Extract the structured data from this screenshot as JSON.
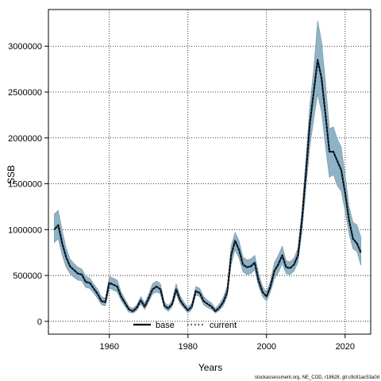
{
  "chart_data": {
    "type": "line",
    "title": "",
    "xlabel": "Years",
    "ylabel": "SSB",
    "xlim": [
      1944.5,
      2026.5
    ],
    "ylim": [
      -140000,
      3400000
    ],
    "x_ticks": [
      1960,
      1980,
      2000,
      2020
    ],
    "y_ticks": [
      0,
      500000,
      1000000,
      1500000,
      2000000,
      2500000,
      3000000
    ],
    "grid": true,
    "legend_position": "bottom-left",
    "legend": [
      {
        "name": "base",
        "style": "solid"
      },
      {
        "name": "current",
        "style": "dotted"
      }
    ],
    "colors": {
      "band_fill": "#8fb3c6",
      "band_stroke": "#6f93a6",
      "base": "#000000",
      "current": "#1a4a6e"
    },
    "x": [
      1946,
      1947,
      1948,
      1949,
      1950,
      1951,
      1952,
      1953,
      1954,
      1955,
      1956,
      1957,
      1958,
      1959,
      1960,
      1961,
      1962,
      1963,
      1964,
      1965,
      1966,
      1967,
      1968,
      1969,
      1970,
      1971,
      1972,
      1973,
      1974,
      1975,
      1976,
      1977,
      1978,
      1979,
      1980,
      1981,
      1982,
      1983,
      1984,
      1985,
      1986,
      1987,
      1988,
      1989,
      1990,
      1991,
      1992,
      1993,
      1994,
      1995,
      1996,
      1997,
      1998,
      1999,
      2000,
      2001,
      2002,
      2003,
      2004,
      2005,
      2006,
      2007,
      2008,
      2009,
      2010,
      2011,
      2012,
      2013,
      2014,
      2015,
      2016,
      2017,
      2018,
      2019,
      2020,
      2021,
      2022,
      2023,
      2024
    ],
    "series": [
      {
        "name": "base",
        "values": [
          1000000,
          1050000,
          850000,
          700000,
          600000,
          560000,
          520000,
          510000,
          430000,
          420000,
          360000,
          300000,
          220000,
          210000,
          420000,
          400000,
          380000,
          270000,
          200000,
          130000,
          110000,
          150000,
          230000,
          160000,
          250000,
          350000,
          380000,
          350000,
          170000,
          140000,
          190000,
          350000,
          230000,
          170000,
          120000,
          160000,
          330000,
          310000,
          220000,
          190000,
          160000,
          110000,
          150000,
          210000,
          320000,
          720000,
          880000,
          780000,
          620000,
          590000,
          600000,
          640000,
          440000,
          320000,
          270000,
          380000,
          550000,
          620000,
          720000,
          590000,
          580000,
          620000,
          720000,
          1100000,
          1600000,
          2150000,
          2500000,
          2850000,
          2650000,
          2250000,
          1850000,
          1850000,
          1750000,
          1650000,
          1400000,
          1100000,
          900000,
          850000,
          750000
        ]
      },
      {
        "name": "current",
        "values": [
          1000000,
          1050000,
          850000,
          700000,
          600000,
          560000,
          520000,
          510000,
          430000,
          420000,
          360000,
          300000,
          220000,
          210000,
          420000,
          400000,
          380000,
          270000,
          200000,
          130000,
          110000,
          150000,
          230000,
          160000,
          250000,
          350000,
          380000,
          350000,
          170000,
          140000,
          190000,
          350000,
          230000,
          170000,
          120000,
          160000,
          330000,
          310000,
          220000,
          190000,
          160000,
          110000,
          150000,
          210000,
          320000,
          720000,
          880000,
          780000,
          620000,
          590000,
          600000,
          640000,
          440000,
          320000,
          270000,
          380000,
          550000,
          620000,
          720000,
          590000,
          580000,
          620000,
          720000,
          1100000,
          1600000,
          2150000,
          2500000,
          2850000,
          2650000,
          2250000,
          1850000,
          1850000,
          1750000,
          1650000,
          1400000,
          1100000,
          900000,
          850000,
          750000
        ]
      }
    ],
    "band_upper": [
      1170000,
      1210000,
      990000,
      800000,
      680000,
      630000,
      590000,
      570000,
      490000,
      470000,
      410000,
      350000,
      270000,
      250000,
      490000,
      470000,
      450000,
      320000,
      240000,
      160000,
      140000,
      180000,
      270000,
      200000,
      300000,
      410000,
      440000,
      410000,
      210000,
      170000,
      230000,
      410000,
      280000,
      210000,
      150000,
      200000,
      380000,
      360000,
      270000,
      230000,
      200000,
      140000,
      190000,
      260000,
      380000,
      820000,
      970000,
      880000,
      700000,
      670000,
      680000,
      720000,
      520000,
      380000,
      320000,
      440000,
      640000,
      720000,
      820000,
      660000,
      650000,
      690000,
      800000,
      1220000,
      1760000,
      2350000,
      2750000,
      3280000,
      3050000,
      2600000,
      2100000,
      2120000,
      1990000,
      1900000,
      1600000,
      1250000,
      1080000,
      1050000,
      920000
    ],
    "band_lower": [
      860000,
      900000,
      720000,
      590000,
      520000,
      480000,
      450000,
      440000,
      370000,
      360000,
      310000,
      250000,
      180000,
      170000,
      360000,
      340000,
      320000,
      230000,
      160000,
      100000,
      90000,
      120000,
      190000,
      130000,
      210000,
      300000,
      320000,
      300000,
      140000,
      110000,
      160000,
      300000,
      190000,
      140000,
      90000,
      130000,
      290000,
      270000,
      180000,
      150000,
      130000,
      90000,
      120000,
      170000,
      270000,
      620000,
      780000,
      690000,
      540000,
      510000,
      520000,
      560000,
      380000,
      270000,
      220000,
      320000,
      470000,
      530000,
      630000,
      520000,
      510000,
      550000,
      640000,
      980000,
      1440000,
      1900000,
      2200000,
      2480000,
      2280000,
      1900000,
      1570000,
      1600000,
      1480000,
      1420000,
      1200000,
      950000,
      790000,
      760000,
      610000
    ]
  },
  "footnote": "stockassessment.org, NE_COD, r18628, git:c9c81ac53a0d"
}
